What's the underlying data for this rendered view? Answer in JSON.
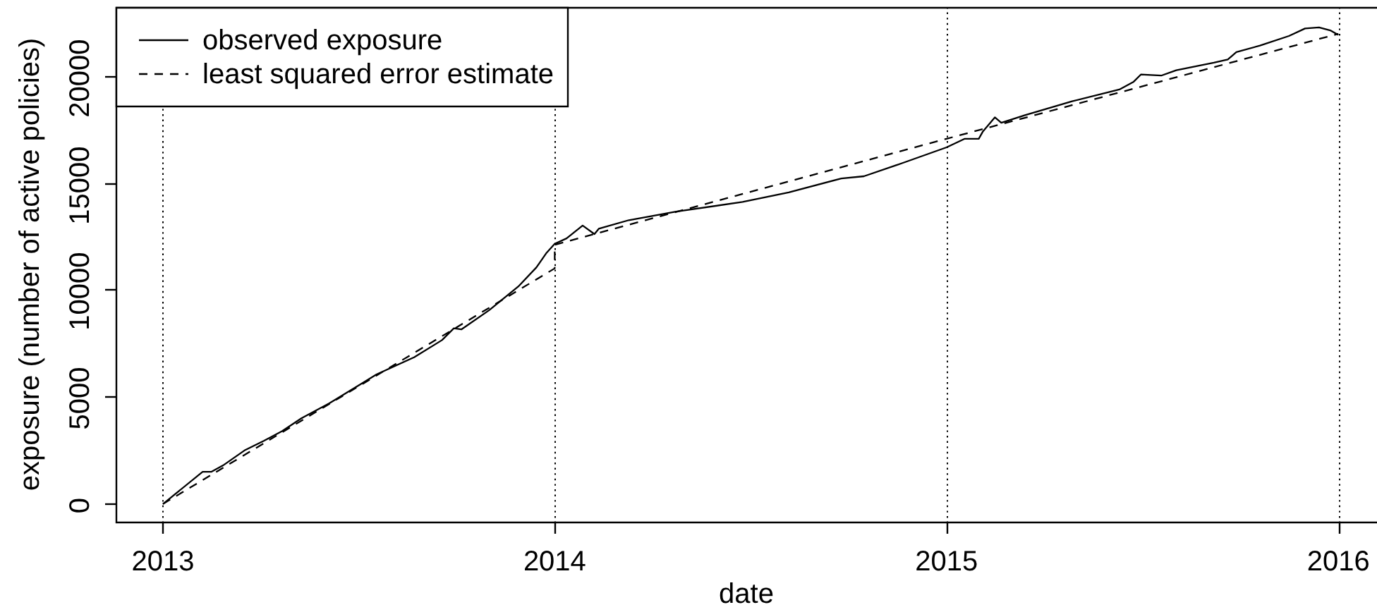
{
  "chart_data": {
    "type": "line",
    "xlabel": "date",
    "ylabel": "exposure (number of active policies)",
    "series": [
      {
        "name": "observed exposure",
        "color": "#000000",
        "line_style": "solid",
        "x": [
          "2013-01-01",
          "2013-02-07",
          "2013-02-15",
          "2013-02-26",
          "2013-03-18",
          "2013-04-05",
          "2013-04-22",
          "2013-05-10",
          "2013-06-05",
          "2013-07-19",
          "2013-08-23",
          "2013-09-18",
          "2013-09-29",
          "2013-10-06",
          "2013-11-01",
          "2013-11-28",
          "2013-12-15",
          "2013-12-24",
          "2014-01-01",
          "2014-01-12",
          "2014-01-27",
          "2014-02-07",
          "2014-02-11",
          "2014-03-11",
          "2014-04-24",
          "2014-06-25",
          "2014-08-07",
          "2014-09-25",
          "2014-10-16",
          "2014-11-20",
          "2015-01-01",
          "2015-01-18",
          "2015-01-31",
          "2015-02-04",
          "2015-02-15",
          "2015-02-21",
          "2015-03-15",
          "2015-04-28",
          "2015-06-11",
          "2015-06-24",
          "2015-07-01",
          "2015-07-20",
          "2015-08-03",
          "2015-09-07",
          "2015-09-20",
          "2015-09-28",
          "2015-10-20",
          "2015-11-16",
          "2015-12-01",
          "2015-12-14",
          "2015-12-25",
          "2016-01-01"
        ],
        "values": [
          0,
          1500,
          1500,
          1800,
          2500,
          2950,
          3400,
          4000,
          4700,
          6050,
          6850,
          7650,
          8200,
          8150,
          9050,
          10150,
          11050,
          11700,
          12150,
          12400,
          13000,
          12600,
          12850,
          13250,
          13650,
          14100,
          14550,
          15200,
          15300,
          15900,
          16650,
          17050,
          17050,
          17400,
          18050,
          17800,
          18150,
          18800,
          19350,
          19700,
          20050,
          20000,
          20250,
          20600,
          20750,
          21100,
          21400,
          21850,
          22200,
          22250,
          22100,
          21900
        ]
      },
      {
        "name": "least squared error estimate",
        "color": "#000000",
        "line_style": "dashed",
        "x": [
          "2013",
          "2014",
          "2014",
          "2015",
          "2016"
        ],
        "values": [
          0,
          11000,
          12100,
          17050,
          21950
        ]
      }
    ],
    "xlim": [
      "2012-11-18",
      "2016-02-06"
    ],
    "ylim": [
      -830,
      23200
    ],
    "xticks": [
      "2013",
      "2014",
      "2015",
      "2016"
    ],
    "yticks": [
      0,
      5000,
      10000,
      15000,
      20000
    ],
    "grid": "x",
    "legend": "top left",
    "marker": "none"
  }
}
